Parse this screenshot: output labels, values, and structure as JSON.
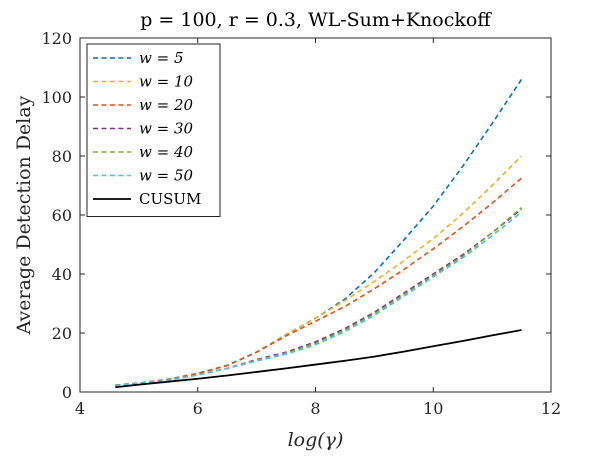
{
  "chart_data": {
    "type": "line",
    "title": "p = 100, r = 0.3, WL-Sum+Knockoff",
    "xlabel": "log(γ)",
    "ylabel": "Average Detection Delay",
    "xlim": [
      4,
      12
    ],
    "ylim": [
      0,
      120
    ],
    "xticks": [
      4,
      6,
      8,
      10,
      12
    ],
    "yticks": [
      0,
      20,
      40,
      60,
      80,
      100,
      120
    ],
    "grid": false,
    "legend_position": "top-left",
    "x": [
      4.6,
      5.0,
      5.5,
      6.0,
      6.5,
      7.0,
      7.5,
      8.0,
      8.5,
      9.0,
      9.5,
      10.0,
      10.5,
      11.0,
      11.5
    ],
    "series": [
      {
        "name": "w = 5",
        "color": "#0072BD",
        "dash": true,
        "values": [
          2.3,
          3.0,
          4.3,
          6.3,
          9.0,
          13.5,
          19.5,
          25.0,
          31.5,
          40.5,
          51.5,
          63.0,
          76.5,
          91.0,
          106.0
        ]
      },
      {
        "name": "w = 10",
        "color": "#EDB120",
        "dash": true,
        "values": [
          2.3,
          3.0,
          4.3,
          6.3,
          9.0,
          13.5,
          19.5,
          25.0,
          31.0,
          37.5,
          44.5,
          52.0,
          60.5,
          70.0,
          80.0
        ]
      },
      {
        "name": "w = 20",
        "color": "#D95319",
        "dash": true,
        "values": [
          2.3,
          3.0,
          4.3,
          6.3,
          9.0,
          13.5,
          19.0,
          24.0,
          29.0,
          35.0,
          41.5,
          48.5,
          56.0,
          64.0,
          72.5
        ]
      },
      {
        "name": "w = 30",
        "color": "#7E2F8E",
        "dash": true,
        "values": [
          2.2,
          2.9,
          4.0,
          5.8,
          8.0,
          11.0,
          13.5,
          17.0,
          21.5,
          27.0,
          33.5,
          40.0,
          46.5,
          54.0,
          62.0
        ]
      },
      {
        "name": "w = 40",
        "color": "#77AC30",
        "dash": true,
        "values": [
          2.2,
          2.9,
          4.0,
          5.8,
          8.0,
          10.8,
          13.2,
          16.5,
          21.0,
          26.5,
          33.0,
          39.5,
          46.0,
          54.0,
          62.5
        ]
      },
      {
        "name": "w = 50",
        "color": "#4DBEEE",
        "dash": true,
        "values": [
          2.2,
          2.9,
          4.0,
          5.8,
          8.0,
          10.5,
          12.8,
          16.0,
          20.5,
          26.0,
          32.5,
          39.0,
          45.5,
          53.0,
          61.0
        ]
      },
      {
        "name": "CUSUM",
        "color": "#000000",
        "dash": false,
        "values": [
          1.6,
          2.5,
          3.5,
          4.5,
          5.6,
          6.8,
          8.0,
          9.3,
          10.6,
          12.0,
          13.7,
          15.5,
          17.3,
          19.2,
          21.0
        ]
      }
    ]
  }
}
